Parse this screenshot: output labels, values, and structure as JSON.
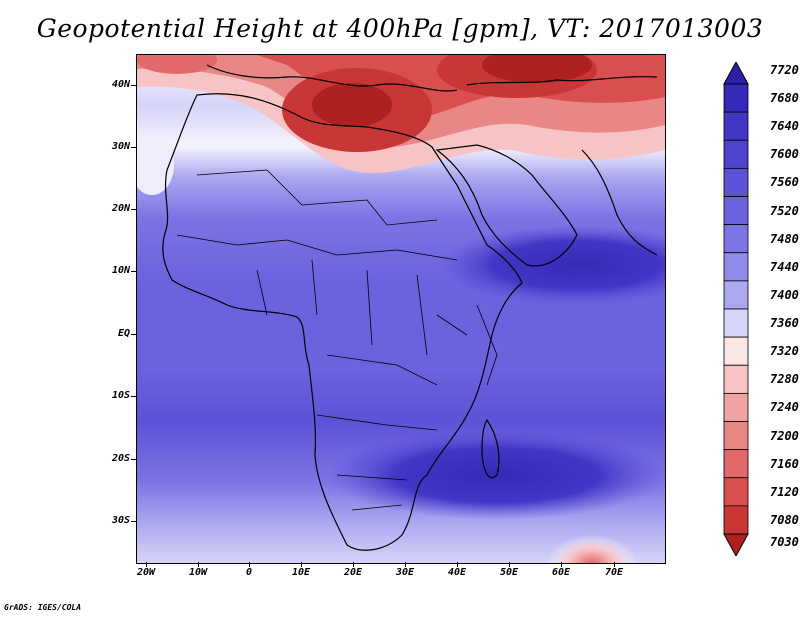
{
  "title": "Geopotential Height at 400hPa [gpm], VT: 2017013003",
  "credit": "GrADS: IGES/COLA",
  "map": {
    "lat_labels": [
      "40N",
      "30N",
      "20N",
      "10N",
      "EQ",
      "10S",
      "20S",
      "30S"
    ],
    "lon_labels": [
      "20W",
      "10W",
      "0",
      "10E",
      "20E",
      "30E",
      "40E",
      "50E",
      "60E",
      "70E"
    ],
    "region": "Africa and Middle East"
  },
  "colorbar": {
    "labels": [
      "7720",
      "7680",
      "7640",
      "7600",
      "7560",
      "7520",
      "7480",
      "7440",
      "7400",
      "7360",
      "7320",
      "7280",
      "7240",
      "7200",
      "7160",
      "7120",
      "7080",
      "7030"
    ],
    "colors": [
      "#2b1fa8",
      "#3529b8",
      "#4236c6",
      "#4e43cf",
      "#5c52d7",
      "#6b62de",
      "#7c74e4",
      "#918bea",
      "#aba7f0",
      "#d6d4f8",
      "#fbe6e6",
      "#f6c4c4",
      "#f0a3a3",
      "#e98686",
      "#e26a6a",
      "#d94f4f",
      "#c93636",
      "#ae2121"
    ]
  },
  "colors": {
    "low": "#b22222",
    "high": "#2b1fa8",
    "mid": "#ffffff"
  }
}
